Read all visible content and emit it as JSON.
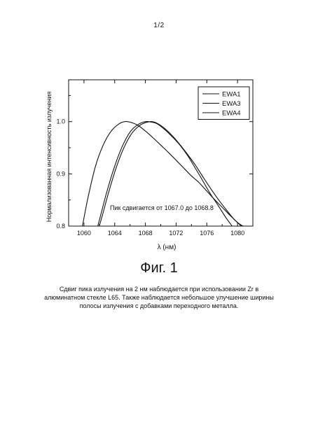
{
  "page": {
    "page_number": "1/2",
    "figure_title": "Фиг. 1",
    "caption": "Сдвиг пика излучения на 2 нм наблюдается при использовании Zr в алюминатном стекле L65. Также наблюдается небольшое улучшение ширины полосы излучения с добавками переходного металла."
  },
  "chart_data": {
    "type": "line",
    "title": "",
    "xlabel": "λ (нм)",
    "ylabel": "Нормализованная интенсивность излучения",
    "xlim": [
      1058,
      1082
    ],
    "ylim": [
      0.8,
      1.08
    ],
    "xticks": [
      1060,
      1064,
      1068,
      1072,
      1076,
      1080
    ],
    "xtick_labels": [
      "1060",
      "1064",
      "1068",
      "1072",
      "1076",
      "1080"
    ],
    "yticks": [
      0.8,
      0.9,
      1.0
    ],
    "ytick_labels": [
      "0.8",
      "0.9",
      "1.0"
    ],
    "legend_position": "top-right",
    "grid": false,
    "annotation": "Пик сдвигается от 1067.0 до 1068.8",
    "series": [
      {
        "name": "EWA1",
        "x": [
          1059.8,
          1060.5,
          1061.5,
          1062.5,
          1063.5,
          1064.5,
          1065.3,
          1066.0,
          1067.0,
          1068.0,
          1069.0,
          1070.0,
          1071.0,
          1072.0,
          1073.0,
          1074.0,
          1075.0,
          1076.0,
          1077.0,
          1078.0,
          1079.0,
          1080.0,
          1080.7
        ],
        "y": [
          0.8,
          0.853,
          0.915,
          0.955,
          0.981,
          0.995,
          1.0,
          0.999,
          0.993,
          0.982,
          0.969,
          0.955,
          0.941,
          0.926,
          0.911,
          0.896,
          0.883,
          0.867,
          0.851,
          0.836,
          0.821,
          0.807,
          0.8
        ]
      },
      {
        "name": "EWA3",
        "x": [
          1061.8,
          1062.3,
          1063.0,
          1064.0,
          1065.0,
          1066.0,
          1067.0,
          1068.0,
          1068.8,
          1069.5,
          1070.5,
          1071.5,
          1072.5,
          1073.5,
          1074.5,
          1075.5,
          1076.5,
          1077.5,
          1078.5,
          1079.3
        ],
        "y": [
          0.8,
          0.828,
          0.867,
          0.915,
          0.953,
          0.98,
          0.994,
          1.0,
          0.999,
          0.996,
          0.985,
          0.971,
          0.955,
          0.935,
          0.911,
          0.886,
          0.861,
          0.839,
          0.816,
          0.8
        ]
      },
      {
        "name": "EWA4",
        "x": [
          1062.0,
          1062.5,
          1063.2,
          1064.2,
          1065.2,
          1066.2,
          1067.2,
          1068.0,
          1068.8,
          1069.5,
          1070.5,
          1071.5,
          1072.5,
          1073.5,
          1074.5,
          1075.5,
          1076.5,
          1077.5,
          1078.5,
          1079.5,
          1080.5
        ],
        "y": [
          0.8,
          0.826,
          0.864,
          0.912,
          0.95,
          0.977,
          0.992,
          0.998,
          1.0,
          0.997,
          0.987,
          0.973,
          0.956,
          0.937,
          0.917,
          0.894,
          0.872,
          0.851,
          0.832,
          0.814,
          0.8
        ]
      }
    ]
  }
}
